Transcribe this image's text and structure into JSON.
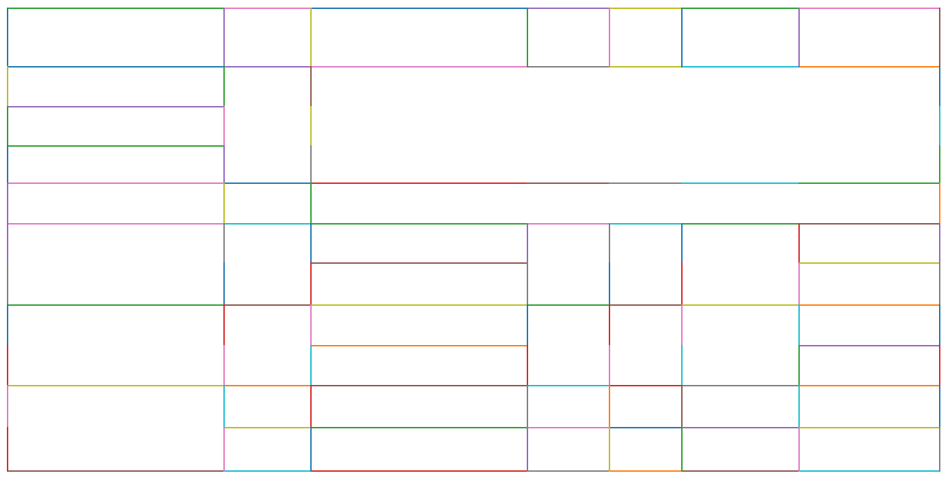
{
  "diagram": {
    "type": "rectangular-partition",
    "palette": {
      "blue": "#1f77b4",
      "orange": "#ff7f0e",
      "green": "#2ca02c",
      "red": "#d62728",
      "purple": "#9467bd",
      "brown": "#8c564b",
      "pink": "#e377c2",
      "gray": "#7f7f7f",
      "olive": "#bcbd22",
      "cyan": "#17becf"
    }
  }
}
